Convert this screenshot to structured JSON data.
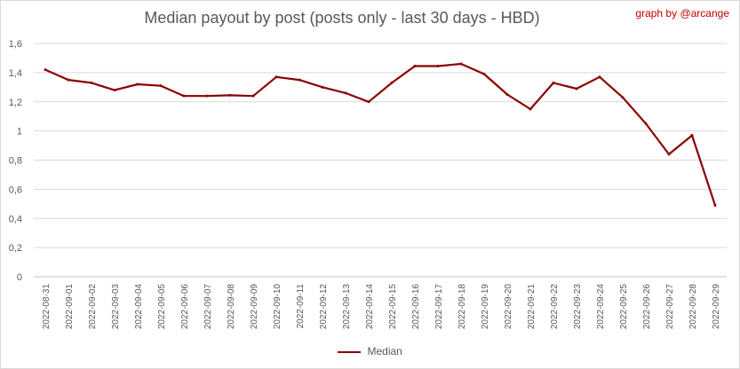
{
  "chart_data": {
    "type": "line",
    "title": "Median payout by post (posts only - last 30 days - HBD)",
    "credit": "graph by @arcange",
    "xlabel": "",
    "ylabel": "",
    "ylim": [
      0,
      1.6
    ],
    "yticks": [
      "0",
      "0,2",
      "0,4",
      "0,6",
      "0,8",
      "1",
      "1,2",
      "1,4",
      "1,6"
    ],
    "grid": true,
    "legend_position": "bottom",
    "categories": [
      "2022-08-31",
      "2022-09-01",
      "2022-09-02",
      "2022-09-03",
      "2022-09-04",
      "2022-09-05",
      "2022-09-06",
      "2022-09-07",
      "2022-09-08",
      "2022-09-09",
      "2022-09-10",
      "2022-09-11",
      "2022-09-12",
      "2022-09-13",
      "2022-09-14",
      "2022-09-15",
      "2022-09-16",
      "2022-09-17",
      "2022-09-18",
      "2022-09-19",
      "2022-09-20",
      "2022-09-21",
      "2022-09-22",
      "2022-09-23",
      "2022-09-24",
      "2022-09-25",
      "2022-09-26",
      "2022-09-27",
      "2022-09-28",
      "2022-09-29"
    ],
    "series": [
      {
        "name": "Median",
        "color": "#8b0000",
        "values": [
          1.42,
          1.35,
          1.33,
          1.28,
          1.32,
          1.31,
          1.24,
          1.24,
          1.245,
          1.24,
          1.37,
          1.35,
          1.3,
          1.26,
          1.2,
          1.33,
          1.445,
          1.445,
          1.46,
          1.39,
          1.25,
          1.15,
          1.33,
          1.29,
          1.37,
          1.23,
          1.05,
          0.84,
          0.97,
          0.49
        ]
      }
    ]
  }
}
